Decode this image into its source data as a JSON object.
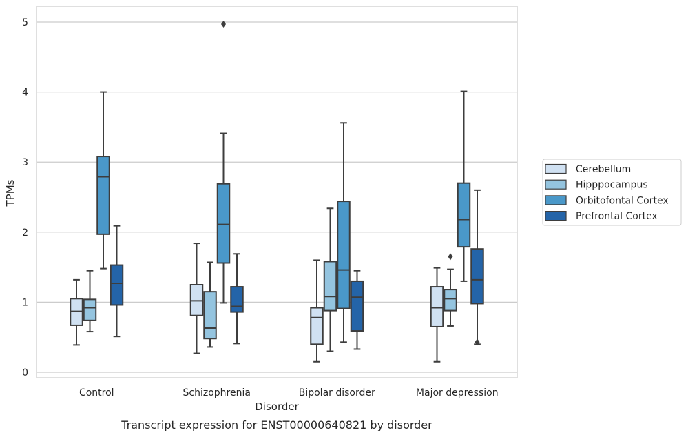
{
  "chart_data": {
    "type": "box",
    "title": "",
    "caption": "Transcript expression for ENST00000640821 by disorder",
    "xlabel": "Disorder",
    "ylabel": "TPMs",
    "ylim": [
      -0.08,
      5.23
    ],
    "yticks": [
      0,
      1,
      2,
      3,
      4,
      5
    ],
    "grid": true,
    "legend_position": "right",
    "categories": [
      "Control",
      "Schizophrenia",
      "Bipolar disorder",
      "Major depression"
    ],
    "series": [
      {
        "name": "Cerebellum",
        "color": "#d0e1f2",
        "boxes": [
          {
            "whisker_low": 0.39,
            "q1": 0.67,
            "median": 0.87,
            "q3": 1.05,
            "whisker_high": 1.32,
            "outliers": []
          },
          {
            "whisker_low": 0.27,
            "q1": 0.81,
            "median": 1.02,
            "q3": 1.25,
            "whisker_high": 1.84,
            "outliers": []
          },
          {
            "whisker_low": 0.15,
            "q1": 0.4,
            "median": 0.78,
            "q3": 0.92,
            "whisker_high": 1.6,
            "outliers": []
          },
          {
            "whisker_low": 0.15,
            "q1": 0.65,
            "median": 0.92,
            "q3": 1.22,
            "whisker_high": 1.49,
            "outliers": []
          }
        ]
      },
      {
        "name": "Hipppocampus",
        "color": "#94c4df",
        "boxes": [
          {
            "whisker_low": 0.58,
            "q1": 0.74,
            "median": 0.92,
            "q3": 1.04,
            "whisker_high": 1.45,
            "outliers": []
          },
          {
            "whisker_low": 0.36,
            "q1": 0.48,
            "median": 0.63,
            "q3": 1.15,
            "whisker_high": 1.57,
            "outliers": []
          },
          {
            "whisker_low": 0.3,
            "q1": 0.88,
            "median": 1.08,
            "q3": 1.58,
            "whisker_high": 2.34,
            "outliers": []
          },
          {
            "whisker_low": 0.66,
            "q1": 0.88,
            "median": 1.05,
            "q3": 1.18,
            "whisker_high": 1.47,
            "outliers": [
              1.65
            ]
          }
        ]
      },
      {
        "name": "Orbitofontal Cortex",
        "color": "#4a98c9",
        "boxes": [
          {
            "whisker_low": 1.48,
            "q1": 1.97,
            "median": 2.79,
            "q3": 3.08,
            "whisker_high": 4.0,
            "outliers": []
          },
          {
            "whisker_low": 0.99,
            "q1": 1.56,
            "median": 2.11,
            "q3": 2.69,
            "whisker_high": 3.41,
            "outliers": [
              4.97
            ]
          },
          {
            "whisker_low": 0.43,
            "q1": 0.91,
            "median": 1.46,
            "q3": 2.44,
            "whisker_high": 3.56,
            "outliers": []
          },
          {
            "whisker_low": 1.3,
            "q1": 1.79,
            "median": 2.18,
            "q3": 2.7,
            "whisker_high": 4.01,
            "outliers": []
          }
        ]
      },
      {
        "name": "Prefrontal Cortex",
        "color": "#2464a8",
        "boxes": [
          {
            "whisker_low": 0.51,
            "q1": 0.96,
            "median": 1.27,
            "q3": 1.53,
            "whisker_high": 2.09,
            "outliers": []
          },
          {
            "whisker_low": 0.41,
            "q1": 0.86,
            "median": 0.94,
            "q3": 1.22,
            "whisker_high": 1.69,
            "outliers": []
          },
          {
            "whisker_low": 0.33,
            "q1": 0.59,
            "median": 1.07,
            "q3": 1.3,
            "whisker_high": 1.45,
            "outliers": []
          },
          {
            "whisker_low": 0.4,
            "q1": 0.98,
            "median": 1.32,
            "q3": 1.76,
            "whisker_high": 2.6,
            "outliers": [
              0.43
            ]
          }
        ]
      }
    ]
  }
}
